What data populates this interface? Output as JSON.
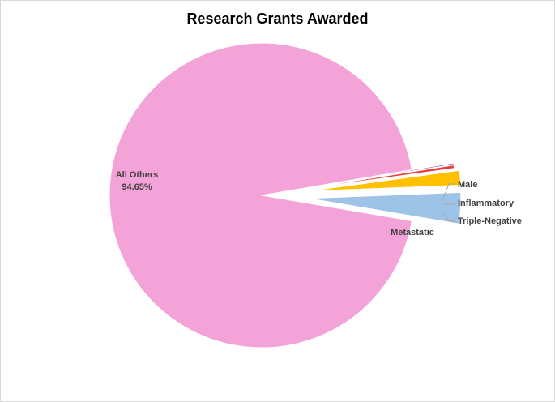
{
  "chart_data": {
    "type": "pie",
    "title": "Research Grants Awarded",
    "slices": [
      {
        "name": "All Others",
        "percent": 94.65,
        "color": "#f4a3d8",
        "label": "All Others",
        "value_label": "94.65%"
      },
      {
        "name": "Metastatic",
        "percent": 3.3,
        "color": "#9dc3e6",
        "label": "Metastatic",
        "value_label": ""
      },
      {
        "name": "Triple-Negative",
        "percent": 1.55,
        "color": "#ffc000",
        "label": "Triple-Negative",
        "value_label": ""
      },
      {
        "name": "Inflammatory",
        "percent": 0.35,
        "color": "#ee3a3a",
        "label": "Inflammatory",
        "value_label": ""
      },
      {
        "name": "Male",
        "percent": 0.15,
        "color": "#8b4ab5",
        "label": "Male",
        "value_label": ""
      }
    ],
    "exploded": [
      "Metastatic",
      "Triple-Negative",
      "Inflammatory",
      "Male"
    ],
    "legend": "none"
  }
}
